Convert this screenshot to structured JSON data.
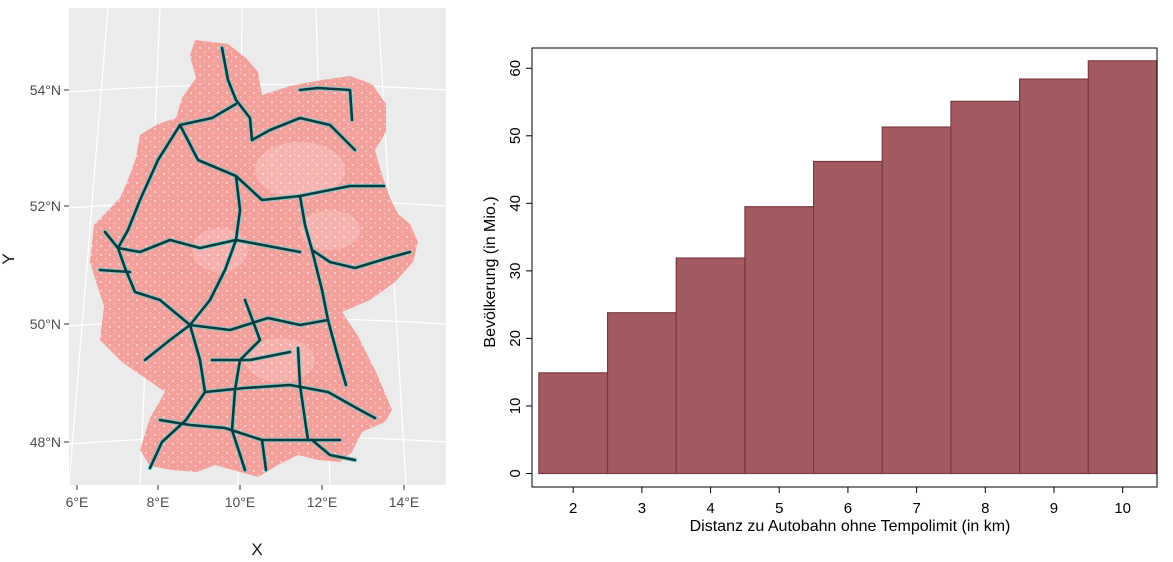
{
  "chart_data": [
    {
      "type": "map",
      "title": "",
      "xlabel": "X",
      "ylabel": "Y",
      "x_ticks": [
        "6°E",
        "8°E",
        "10°E",
        "12°E",
        "14°E"
      ],
      "y_ticks": [
        "54°N",
        "52°N",
        "50°N",
        "48°N"
      ],
      "grid": true,
      "colors": {
        "panel": "#ebebeb",
        "population": "#f4a09a",
        "roads": "#0b3b3c",
        "road_glow": "#5fd3d6"
      }
    },
    {
      "type": "bar",
      "title": "",
      "categories": [
        "2",
        "3",
        "4",
        "5",
        "6",
        "7",
        "8",
        "9",
        "10"
      ],
      "values": [
        14.9,
        23.8,
        31.9,
        39.5,
        46.2,
        51.3,
        55.1,
        58.4,
        61.1
      ],
      "xlabel": "Distanz zu Autobahn ohne Tempolimit (in km)",
      "ylabel": "Bevölkerung (in Mio.)",
      "ylim": [
        -2,
        63
      ],
      "y_ticks": [
        "0",
        "10",
        "20",
        "30",
        "40",
        "50",
        "60"
      ],
      "grid": false,
      "colors": {
        "bar": "#a35a60",
        "bar_edge": "#7a3a41"
      }
    }
  ]
}
